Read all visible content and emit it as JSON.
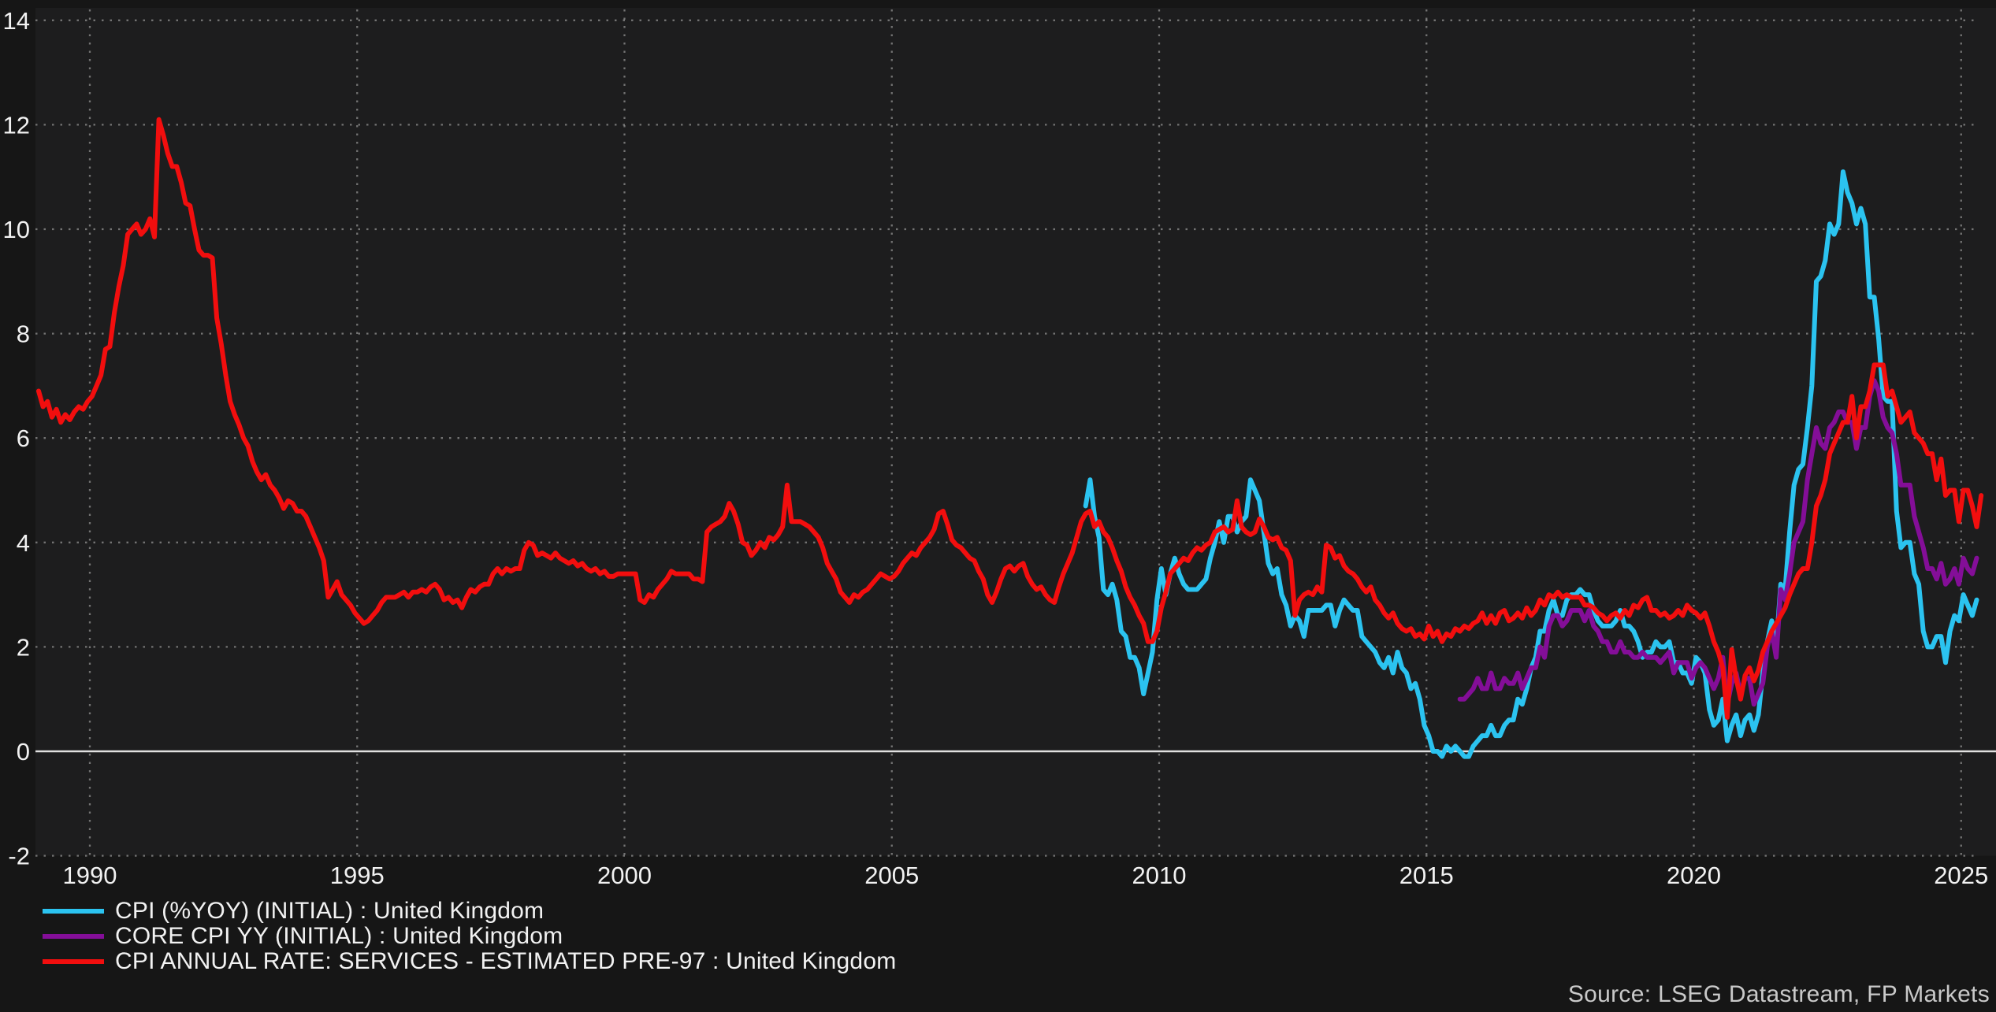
{
  "source_note": "Source: LSEG Datastream, FP Markets",
  "chart_data": {
    "type": "line",
    "title": "",
    "xlabel": "",
    "ylabel": "",
    "x_ticks": [
      1990,
      1995,
      2000,
      2005,
      2010,
      2015,
      2020,
      2025
    ],
    "y_ticks": [
      14,
      12,
      10,
      8,
      6,
      4,
      2,
      0,
      -2
    ],
    "ylim": [
      -2,
      14
    ],
    "xlim": [
      1988.95,
      2025.45
    ],
    "grid": "dotted",
    "zero_line": true,
    "legend_position": "bottom-left",
    "colors": {
      "background": "#161616",
      "plot_background": "#1D1D1E",
      "gridline": "#A8A8A8",
      "zero_line": "#E0E0E0",
      "tick_label": "#F2F2F2",
      "source_text": "#C9C9C9"
    },
    "series": [
      {
        "name": "CPI (%YOY) (INITIAL) : United Kingdom",
        "color": "#2BC3F0",
        "start_year": 2008,
        "start_month": 8,
        "values": [
          4.7,
          5.2,
          4.5,
          4.1,
          3.1,
          3.0,
          3.2,
          2.9,
          2.3,
          2.2,
          1.8,
          1.8,
          1.6,
          1.1,
          1.5,
          1.9,
          2.9,
          3.5,
          3.0,
          3.4,
          3.7,
          3.4,
          3.2,
          3.1,
          3.1,
          3.1,
          3.2,
          3.3,
          3.7,
          4.0,
          4.4,
          4.0,
          4.5,
          4.5,
          4.2,
          4.4,
          4.5,
          5.2,
          5.0,
          4.8,
          4.2,
          3.6,
          3.4,
          3.5,
          3.0,
          2.8,
          2.4,
          2.6,
          2.5,
          2.2,
          2.7,
          2.7,
          2.7,
          2.7,
          2.8,
          2.8,
          2.4,
          2.7,
          2.9,
          2.8,
          2.7,
          2.7,
          2.2,
          2.1,
          2.0,
          1.9,
          1.7,
          1.6,
          1.8,
          1.5,
          1.9,
          1.6,
          1.5,
          1.2,
          1.3,
          1.0,
          0.5,
          0.3,
          0.0,
          0.0,
          -0.1,
          0.1,
          0.0,
          0.1,
          0.0,
          -0.1,
          -0.1,
          0.1,
          0.2,
          0.3,
          0.3,
          0.5,
          0.3,
          0.3,
          0.5,
          0.6,
          0.6,
          1.0,
          0.9,
          1.2,
          1.6,
          1.8,
          2.3,
          2.3,
          2.7,
          2.9,
          2.6,
          2.6,
          2.9,
          3.0,
          3.0,
          3.1,
          3.0,
          3.0,
          2.7,
          2.5,
          2.4,
          2.4,
          2.4,
          2.5,
          2.7,
          2.4,
          2.4,
          2.3,
          2.1,
          1.8,
          1.9,
          1.9,
          2.1,
          2.0,
          2.0,
          2.1,
          1.7,
          1.7,
          1.5,
          1.5,
          1.3,
          1.8,
          1.7,
          1.5,
          0.8,
          0.5,
          0.6,
          1.0,
          0.2,
          0.5,
          0.7,
          0.3,
          0.6,
          0.7,
          0.4,
          0.7,
          1.5,
          2.1,
          2.5,
          2.0,
          3.2,
          3.1,
          4.2,
          5.1,
          5.4,
          5.5,
          6.2,
          7.0,
          9.0,
          9.1,
          9.4,
          10.1,
          9.9,
          10.1,
          11.1,
          10.7,
          10.5,
          10.1,
          10.4,
          10.1,
          8.7,
          8.7,
          7.9,
          6.8,
          6.7,
          6.7,
          4.6,
          3.9,
          4.0,
          4.0,
          3.4,
          3.2,
          2.3,
          2.0,
          2.0,
          2.2,
          2.2,
          1.7,
          2.3,
          2.6,
          2.5,
          3.0,
          2.8,
          2.6,
          2.9
        ]
      },
      {
        "name": "CORE CPI YY (INITIAL) : United Kingdom",
        "color": "#840E98",
        "start_year": 2015,
        "start_month": 8,
        "values": [
          1.0,
          1.0,
          1.1,
          1.2,
          1.4,
          1.2,
          1.2,
          1.5,
          1.2,
          1.2,
          1.4,
          1.3,
          1.3,
          1.5,
          1.2,
          1.4,
          1.6,
          1.6,
          2.0,
          1.8,
          2.4,
          2.6,
          2.6,
          2.4,
          2.5,
          2.7,
          2.7,
          2.7,
          2.5,
          2.7,
          2.4,
          2.3,
          2.1,
          2.1,
          1.9,
          1.9,
          2.1,
          1.9,
          1.9,
          1.8,
          1.8,
          1.9,
          1.8,
          1.8,
          1.8,
          1.7,
          1.8,
          1.9,
          1.5,
          1.7,
          1.7,
          1.7,
          1.4,
          1.6,
          1.7,
          1.6,
          1.4,
          1.2,
          1.4,
          1.8,
          0.9,
          1.3,
          1.5,
          1.1,
          1.4,
          1.4,
          0.9,
          1.1,
          1.3,
          2.0,
          2.3,
          1.8,
          3.1,
          2.9,
          3.4,
          4.0,
          4.2,
          4.4,
          5.2,
          5.7,
          6.2,
          5.9,
          5.8,
          6.2,
          6.3,
          6.5,
          6.5,
          6.3,
          6.3,
          5.8,
          6.2,
          6.2,
          6.8,
          7.1,
          6.9,
          6.4,
          6.2,
          6.1,
          5.7,
          5.1,
          5.1,
          5.1,
          4.5,
          4.2,
          3.9,
          3.5,
          3.5,
          3.3,
          3.6,
          3.2,
          3.3,
          3.5,
          3.2,
          3.7,
          3.5,
          3.4,
          3.7
        ]
      },
      {
        "name": "CPI ANNUAL RATE: SERVICES - ESTIMATED PRE-97 : United Kingdom",
        "color": "#F20E0E",
        "start_year": 1989,
        "start_month": 1,
        "values": [
          6.9,
          6.6,
          6.7,
          6.4,
          6.55,
          6.3,
          6.45,
          6.35,
          6.5,
          6.6,
          6.55,
          6.7,
          6.8,
          7.0,
          7.2,
          7.7,
          7.75,
          8.4,
          8.9,
          9.3,
          9.9,
          10.0,
          10.1,
          9.9,
          10.0,
          10.2,
          9.85,
          12.1,
          11.8,
          11.45,
          11.2,
          11.2,
          10.9,
          10.5,
          10.45,
          10.0,
          9.6,
          9.5,
          9.5,
          9.45,
          8.3,
          7.8,
          7.2,
          6.7,
          6.45,
          6.25,
          6.0,
          5.85,
          5.55,
          5.35,
          5.2,
          5.3,
          5.1,
          5.0,
          4.85,
          4.65,
          4.8,
          4.75,
          4.6,
          4.6,
          4.5,
          4.3,
          4.1,
          3.9,
          3.65,
          2.95,
          3.1,
          3.25,
          3.0,
          2.9,
          2.8,
          2.65,
          2.55,
          2.45,
          2.5,
          2.6,
          2.7,
          2.85,
          2.95,
          2.95,
          2.95,
          3.0,
          3.05,
          2.95,
          3.05,
          3.05,
          3.1,
          3.05,
          3.15,
          3.2,
          3.1,
          2.9,
          2.95,
          2.85,
          2.9,
          2.75,
          2.95,
          3.1,
          3.05,
          3.15,
          3.2,
          3.2,
          3.4,
          3.5,
          3.4,
          3.5,
          3.45,
          3.5,
          3.5,
          3.85,
          4.0,
          3.95,
          3.75,
          3.8,
          3.75,
          3.7,
          3.8,
          3.7,
          3.65,
          3.6,
          3.65,
          3.55,
          3.6,
          3.5,
          3.45,
          3.5,
          3.4,
          3.45,
          3.35,
          3.35,
          3.4,
          3.4,
          3.4,
          3.4,
          3.4,
          2.9,
          2.85,
          3.0,
          2.95,
          3.1,
          3.2,
          3.3,
          3.45,
          3.4,
          3.4,
          3.4,
          3.4,
          3.3,
          3.3,
          3.25,
          4.2,
          4.3,
          4.35,
          4.4,
          4.5,
          4.75,
          4.6,
          4.35,
          4.0,
          3.95,
          3.75,
          3.85,
          4.0,
          3.9,
          4.1,
          4.05,
          4.15,
          4.3,
          5.1,
          4.4,
          4.4,
          4.4,
          4.35,
          4.3,
          4.2,
          4.1,
          3.9,
          3.6,
          3.45,
          3.3,
          3.05,
          2.95,
          2.85,
          3.0,
          2.95,
          3.05,
          3.1,
          3.2,
          3.3,
          3.4,
          3.35,
          3.3,
          3.35,
          3.45,
          3.6,
          3.7,
          3.8,
          3.75,
          3.9,
          4.0,
          4.1,
          4.25,
          4.55,
          4.6,
          4.35,
          4.05,
          3.95,
          3.9,
          3.8,
          3.7,
          3.65,
          3.45,
          3.3,
          3.0,
          2.85,
          3.05,
          3.3,
          3.5,
          3.55,
          3.45,
          3.55,
          3.6,
          3.35,
          3.2,
          3.1,
          3.15,
          3.0,
          2.9,
          2.85,
          3.15,
          3.4,
          3.6,
          3.8,
          4.1,
          4.4,
          4.55,
          4.6,
          4.3,
          4.4,
          4.2,
          4.1,
          3.9,
          3.65,
          3.45,
          3.15,
          2.95,
          2.8,
          2.6,
          2.45,
          2.1,
          2.1,
          2.3,
          2.75,
          3.05,
          3.4,
          3.5,
          3.6,
          3.7,
          3.65,
          3.8,
          3.9,
          3.85,
          3.95,
          4.0,
          4.2,
          4.25,
          4.3,
          4.2,
          4.25,
          4.8,
          4.3,
          4.2,
          4.15,
          4.2,
          4.45,
          4.3,
          4.1,
          4.05,
          4.1,
          3.9,
          3.85,
          3.65,
          2.6,
          2.9,
          3.0,
          3.05,
          3.0,
          3.15,
          3.05,
          3.95,
          3.9,
          3.7,
          3.75,
          3.55,
          3.45,
          3.4,
          3.3,
          3.15,
          3.05,
          3.15,
          2.9,
          2.8,
          2.65,
          2.55,
          2.65,
          2.45,
          2.35,
          2.3,
          2.35,
          2.2,
          2.25,
          2.15,
          2.4,
          2.2,
          2.3,
          2.1,
          2.25,
          2.2,
          2.35,
          2.3,
          2.4,
          2.35,
          2.45,
          2.5,
          2.65,
          2.45,
          2.6,
          2.45,
          2.65,
          2.7,
          2.5,
          2.55,
          2.65,
          2.55,
          2.75,
          2.6,
          2.7,
          2.9,
          2.8,
          3.0,
          2.95,
          3.05,
          2.95,
          3.0,
          2.95,
          2.95,
          2.95,
          2.8,
          2.8,
          2.75,
          2.65,
          2.6,
          2.5,
          2.6,
          2.65,
          2.55,
          2.7,
          2.6,
          2.8,
          2.75,
          2.9,
          2.95,
          2.7,
          2.7,
          2.6,
          2.65,
          2.55,
          2.6,
          2.7,
          2.6,
          2.8,
          2.7,
          2.65,
          2.55,
          2.65,
          2.4,
          2.1,
          1.9,
          1.6,
          0.65,
          1.95,
          1.4,
          1.0,
          1.45,
          1.6,
          1.35,
          1.55,
          1.9,
          2.1,
          2.3,
          2.45,
          2.6,
          2.75,
          3.0,
          3.2,
          3.4,
          3.5,
          3.5,
          4.0,
          4.7,
          4.9,
          5.2,
          5.7,
          5.9,
          6.1,
          6.3,
          6.3,
          6.8,
          6.0,
          6.6,
          6.6,
          6.9,
          7.4,
          7.4,
          7.4,
          6.8,
          6.9,
          6.6,
          6.3,
          6.4,
          6.5,
          6.1,
          6.0,
          5.9,
          5.7,
          5.7,
          5.2,
          5.6,
          4.9,
          5.0,
          5.0,
          4.4,
          5.0,
          5.0,
          4.7,
          4.3,
          4.9
        ]
      }
    ]
  }
}
